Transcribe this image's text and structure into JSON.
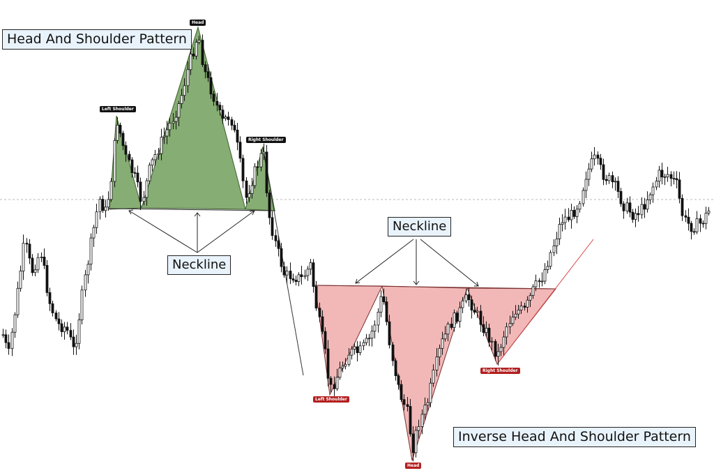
{
  "chart_data": {
    "type": "candlestick",
    "title": "",
    "xlabel": "",
    "ylabel": "",
    "grid": false,
    "reference_line": "dashed horizontal line",
    "colors": {
      "bull_candle": "#ffffff",
      "bear_candle": "#111111",
      "hs_fill": "#86ad73",
      "ihs_fill": "#f2b8b8",
      "ihs_line": "#d64a4a",
      "label_bg": "#e9f3fb",
      "tag_dark": "#111111",
      "tag_red": "#b21f1f"
    },
    "patterns": [
      {
        "name": "Head And Shoulder Pattern",
        "parts": {
          "left_shoulder": "Left Shoulder",
          "head": "Head",
          "right_shoulder": "Right Shoulder"
        },
        "neckline_label": "Neckline"
      },
      {
        "name": "Inverse Head And Shoulder Pattern",
        "parts": {
          "left_shoulder": "Left Shoulder",
          "head": "Head",
          "right_shoulder": "Right Shoulder"
        },
        "neckline_label": "Neckline"
      }
    ]
  }
}
